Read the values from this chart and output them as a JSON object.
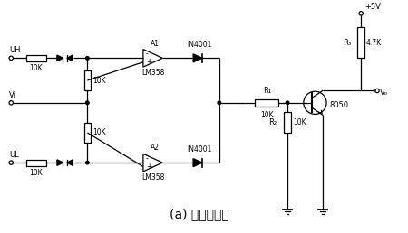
{
  "title": "(a) 电路结构图",
  "title_fontsize": 10,
  "bg_color": "#ffffff",
  "line_color": "#000000",
  "text_color": "#000000",
  "labels": {
    "UH": "UH",
    "Vi": "Vi",
    "UL": "UL",
    "A1": "A1",
    "A2": "A2",
    "LM358_top": "LM358",
    "LM358_bot": "LM358",
    "IN4001_top": "IN4001",
    "IN4001_bot": "IN4001",
    "R1_sym": "R₁",
    "R2_sym": "R₂",
    "R3_sym": "R₃",
    "val_10K": "10K",
    "val_47K": "4.7K",
    "vcc": "+5V",
    "vout": "Vₒ",
    "transistor": "8050"
  },
  "fig_width": 4.5,
  "fig_height": 2.58,
  "dpi": 100
}
